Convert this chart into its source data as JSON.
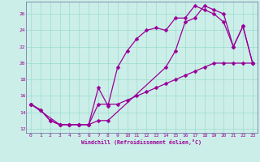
{
  "xlabel": "Windchill (Refroidissement éolien,°C)",
  "bg_color": "#cceee8",
  "grid_color": "#99ddcc",
  "line_color": "#990099",
  "spine_color": "#666699",
  "xlim": [
    -0.5,
    23.5
  ],
  "ylim": [
    11.5,
    27.5
  ],
  "xticks": [
    0,
    1,
    2,
    3,
    4,
    5,
    6,
    7,
    8,
    9,
    10,
    11,
    12,
    13,
    14,
    15,
    16,
    17,
    18,
    19,
    20,
    21,
    22,
    23
  ],
  "yticks": [
    12,
    14,
    16,
    18,
    20,
    22,
    24,
    26
  ],
  "line1_x": [
    0,
    1,
    2,
    3,
    4,
    5,
    6,
    7,
    8,
    9,
    10,
    11,
    12,
    13,
    14,
    15,
    16,
    17,
    18,
    19,
    20,
    21,
    22,
    23
  ],
  "line1_y": [
    15,
    14.3,
    13,
    12.5,
    12.5,
    12.5,
    12.5,
    17,
    14.8,
    19.5,
    21.5,
    23,
    24,
    24.3,
    24,
    25.5,
    25.5,
    27,
    26.5,
    26,
    25,
    22,
    24.5,
    20
  ],
  "line2_x": [
    0,
    1,
    2,
    3,
    4,
    5,
    6,
    7,
    8,
    9,
    10,
    11,
    12,
    13,
    14,
    15,
    16,
    17,
    18,
    19,
    20,
    21,
    22,
    23
  ],
  "line2_y": [
    15,
    14.3,
    13,
    12.5,
    12.5,
    12.5,
    12.5,
    15,
    15,
    15,
    15.5,
    16,
    16.5,
    17,
    17.5,
    18,
    18.5,
    19,
    19.5,
    20,
    20,
    20,
    20,
    20
  ],
  "line3_x": [
    0,
    3,
    4,
    5,
    6,
    7,
    8,
    14,
    15,
    16,
    17,
    18,
    19,
    20,
    21,
    22,
    23
  ],
  "line3_y": [
    15,
    12.5,
    12.5,
    12.5,
    12.5,
    13,
    13,
    19.5,
    21.5,
    25,
    25.5,
    27,
    26.5,
    26,
    22,
    24.5,
    20
  ]
}
